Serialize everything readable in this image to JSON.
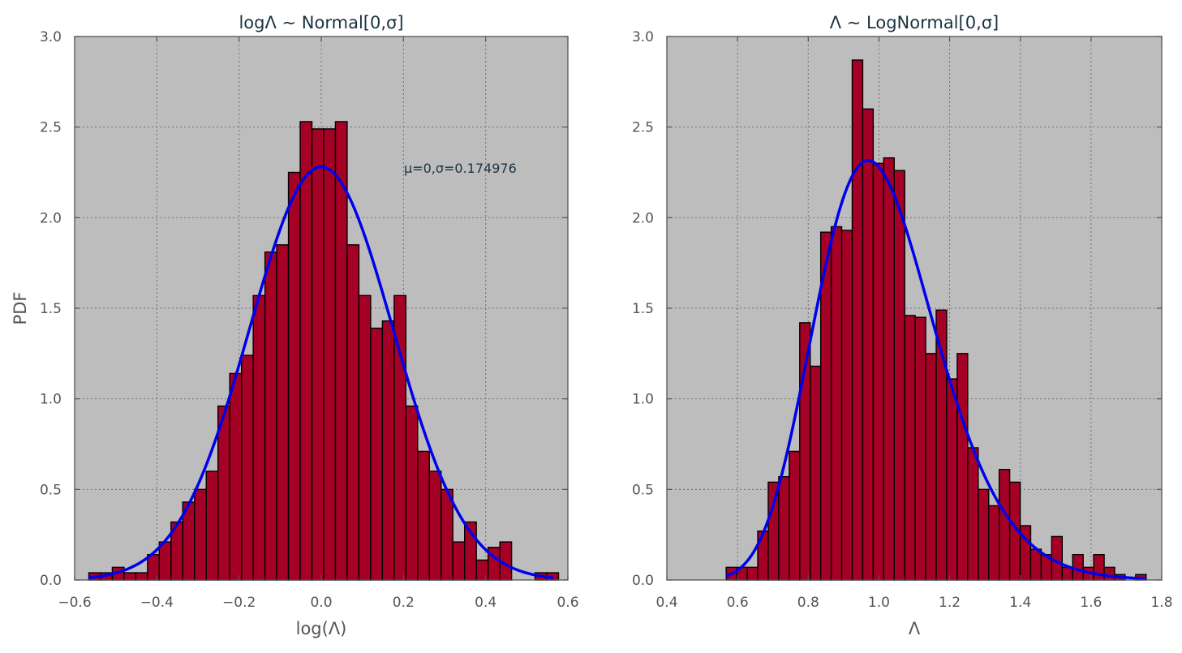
{
  "colors": {
    "background": "#bdbdbd",
    "bar_fill": "#a50025",
    "bar_edge": "#000000",
    "curve": "#0000ee",
    "grid": "#707070",
    "frame": "#555555",
    "title": "#1a3340"
  },
  "chart_data": [
    {
      "type": "bar",
      "title": "logΛ ∼ Normal[0,σ]",
      "xlabel": "log(Λ)",
      "ylabel": "PDF",
      "xlim": [
        -0.6,
        0.6
      ],
      "ylim": [
        0.0,
        3.0
      ],
      "xticks": [
        -0.6,
        -0.4,
        -0.2,
        0.0,
        0.2,
        0.4,
        0.6
      ],
      "xtick_labels": [
        "−0.6",
        "−0.4",
        "−0.2",
        "0.0",
        "0.2",
        "0.4",
        "0.6"
      ],
      "yticks": [
        0.0,
        0.5,
        1.0,
        1.5,
        2.0,
        2.5,
        3.0
      ],
      "ytick_labels": [
        "0.0",
        "0.5",
        "1.0",
        "1.5",
        "2.0",
        "2.5",
        "3.0"
      ],
      "grid": true,
      "annotation": "μ=0,σ=0.174976",
      "bin_start": -0.5655,
      "bin_width": 0.02857,
      "values": [
        0.04,
        0.04,
        0.07,
        0.04,
        0.04,
        0.14,
        0.21,
        0.32,
        0.43,
        0.5,
        0.6,
        0.96,
        1.14,
        1.24,
        1.57,
        1.81,
        1.85,
        2.25,
        2.53,
        2.49,
        2.49,
        2.53,
        1.85,
        1.57,
        1.39,
        1.43,
        1.57,
        0.96,
        0.71,
        0.6,
        0.5,
        0.21,
        0.32,
        0.11,
        0.18,
        0.21,
        0.0,
        0.0,
        0.04,
        0.04
      ],
      "curve": {
        "type": "normal",
        "mu": 0,
        "sigma": 0.174976,
        "x_range": [
          -0.5655,
          0.5655
        ]
      }
    },
    {
      "type": "bar",
      "title": "Λ ∼ LogNormal[0,σ]",
      "xlabel": "Λ",
      "ylabel": "",
      "xlim": [
        0.4,
        1.8
      ],
      "ylim": [
        0.0,
        3.0
      ],
      "xticks": [
        0.4,
        0.6,
        0.8,
        1.0,
        1.2,
        1.4,
        1.6,
        1.8
      ],
      "xtick_labels": [
        "0.4",
        "0.6",
        "0.8",
        "1.0",
        "1.2",
        "1.4",
        "1.6",
        "1.8"
      ],
      "yticks": [
        0.0,
        0.5,
        1.0,
        1.5,
        2.0,
        2.5,
        3.0
      ],
      "ytick_labels": [
        "0.0",
        "0.5",
        "1.0",
        "1.5",
        "2.0",
        "2.5",
        "3.0"
      ],
      "grid": true,
      "bin_start": 0.568,
      "bin_width": 0.0297,
      "values": [
        0.07,
        0.07,
        0.07,
        0.27,
        0.54,
        0.57,
        0.71,
        1.42,
        1.18,
        1.92,
        1.95,
        1.93,
        2.87,
        2.6,
        2.3,
        2.33,
        2.26,
        1.46,
        1.45,
        1.25,
        1.49,
        1.11,
        1.25,
        0.73,
        0.5,
        0.41,
        0.61,
        0.54,
        0.3,
        0.17,
        0.14,
        0.24,
        0.07,
        0.14,
        0.07,
        0.14,
        0.07,
        0.03,
        0.0,
        0.03
      ],
      "curve": {
        "type": "lognormal",
        "mu": 0,
        "sigma": 0.174976,
        "x_range": [
          0.568,
          1.756
        ]
      }
    }
  ]
}
